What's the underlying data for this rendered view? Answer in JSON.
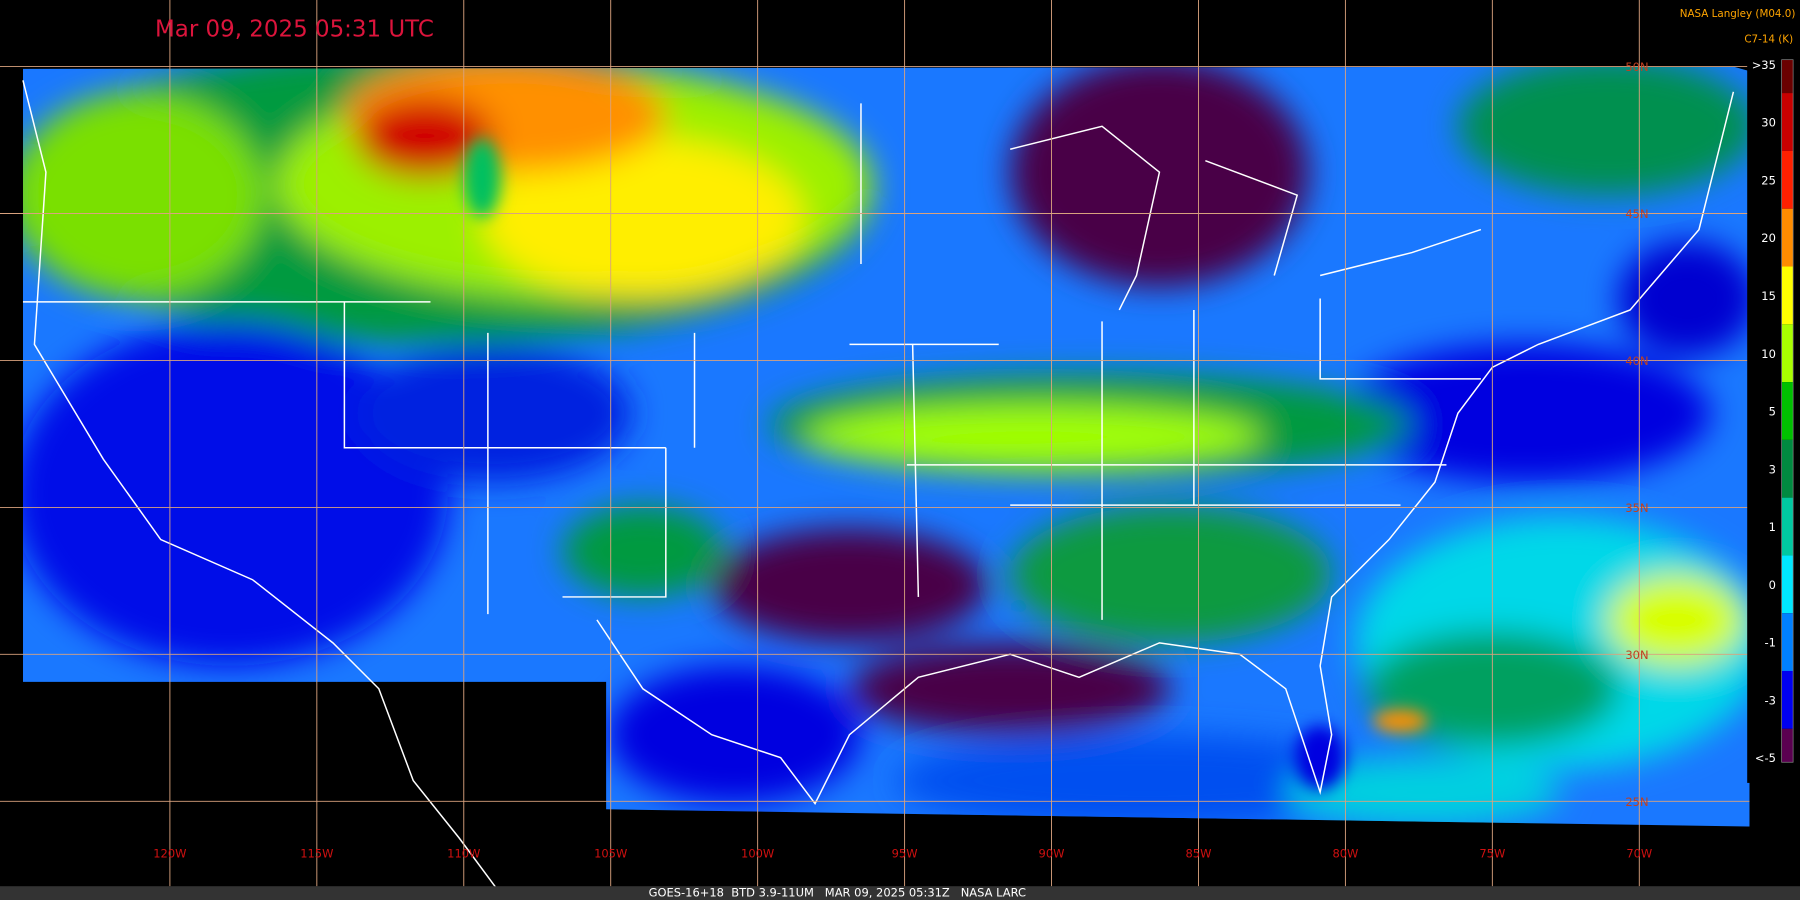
{
  "header": {
    "title": "Mar 09, 2025 05:31 UTC",
    "credit": "NASA Langley (M04.0)"
  },
  "colorbar": {
    "title": "C7-14 (K)",
    "ticks": [
      {
        "value": 35,
        "label": ">35"
      },
      30,
      25,
      20,
      15,
      10,
      5,
      3,
      1,
      0,
      -1,
      -3,
      {
        "value": -5,
        "label": "<-5"
      }
    ],
    "colors": [
      "#6a0000",
      "#c80000",
      "#ff2000",
      "#ff8c00",
      "#ffff00",
      "#a8ff00",
      "#00c000",
      "#008a40",
      "#00c8a0",
      "#00e8ff",
      "#0080ff",
      "#0000f0",
      "#5a0050"
    ]
  },
  "longitude_labels": [
    "120W",
    "115W",
    "110W",
    "105W",
    "100W",
    "95W",
    "90W",
    "85W",
    "80W",
    "75W",
    "70W"
  ],
  "latitude_labels": [
    "50N",
    "45N",
    "40N",
    "35N",
    "30N",
    "25N"
  ],
  "footer": "GOES-16+18  BTD 3.9-11UM   MAR 09, 2025 05:31Z   NASA LARC"
}
